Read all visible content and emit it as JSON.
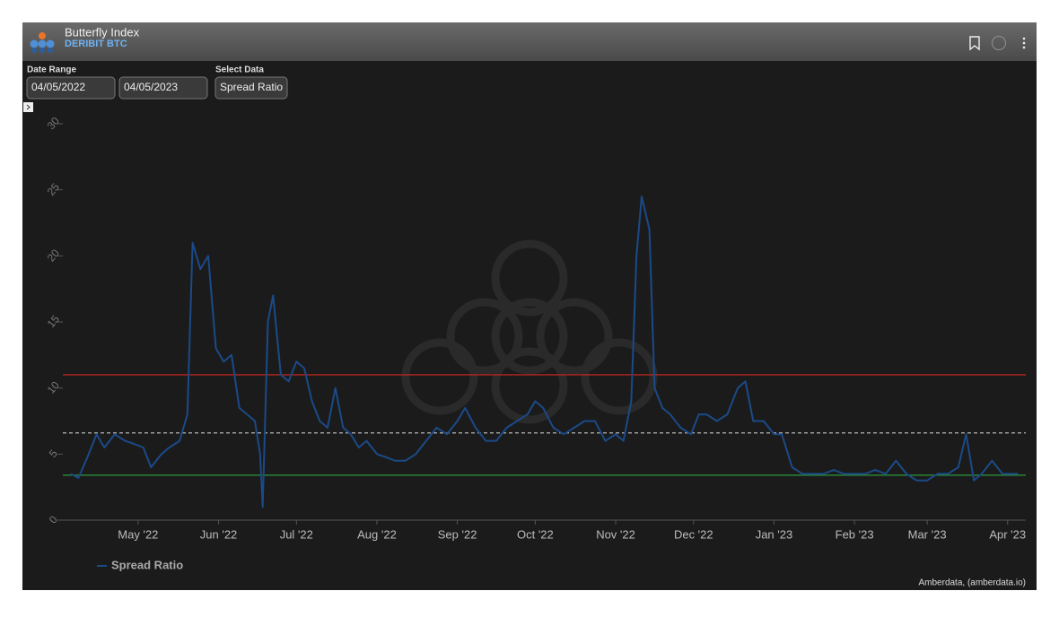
{
  "header": {
    "title": "Butterfly Index",
    "subtitle": "DERIBIT BTC"
  },
  "controls": {
    "date_range": {
      "label": "Date Range",
      "start": "04/05/2022",
      "end": "04/05/2023"
    },
    "select_data": {
      "label": "Select Data",
      "value": "Spread Ratio"
    }
  },
  "credit": "Amberdata, (amberdata.io)",
  "chart_data": {
    "type": "line",
    "x": [
      "2022-04-05",
      "2022-04-08",
      "2022-04-12",
      "2022-04-15",
      "2022-04-18",
      "2022-04-22",
      "2022-04-26",
      "2022-04-29",
      "2022-05-03",
      "2022-05-06",
      "2022-05-10",
      "2022-05-13",
      "2022-05-17",
      "2022-05-20",
      "2022-05-22",
      "2022-05-25",
      "2022-05-28",
      "2022-05-31",
      "2022-06-03",
      "2022-06-06",
      "2022-06-09",
      "2022-06-12",
      "2022-06-15",
      "2022-06-17",
      "2022-06-18",
      "2022-06-20",
      "2022-06-22",
      "2022-06-25",
      "2022-06-28",
      "2022-07-01",
      "2022-07-04",
      "2022-07-07",
      "2022-07-10",
      "2022-07-13",
      "2022-07-16",
      "2022-07-19",
      "2022-07-22",
      "2022-07-25",
      "2022-07-28",
      "2022-08-01",
      "2022-08-04",
      "2022-08-08",
      "2022-08-12",
      "2022-08-16",
      "2022-08-20",
      "2022-08-24",
      "2022-08-28",
      "2022-09-01",
      "2022-09-04",
      "2022-09-08",
      "2022-09-12",
      "2022-09-16",
      "2022-09-20",
      "2022-09-24",
      "2022-09-28",
      "2022-10-01",
      "2022-10-04",
      "2022-10-08",
      "2022-10-12",
      "2022-10-16",
      "2022-10-20",
      "2022-10-24",
      "2022-10-28",
      "2022-11-01",
      "2022-11-04",
      "2022-11-07",
      "2022-11-09",
      "2022-11-11",
      "2022-11-14",
      "2022-11-16",
      "2022-11-19",
      "2022-11-22",
      "2022-11-26",
      "2022-11-30",
      "2022-12-03",
      "2022-12-06",
      "2022-12-10",
      "2022-12-14",
      "2022-12-18",
      "2022-12-21",
      "2022-12-24",
      "2022-12-28",
      "2023-01-01",
      "2023-01-04",
      "2023-01-08",
      "2023-01-12",
      "2023-01-16",
      "2023-01-20",
      "2023-01-24",
      "2023-01-28",
      "2023-02-01",
      "2023-02-05",
      "2023-02-09",
      "2023-02-13",
      "2023-02-17",
      "2023-02-21",
      "2023-02-25",
      "2023-03-01",
      "2023-03-05",
      "2023-03-09",
      "2023-03-13",
      "2023-03-16",
      "2023-03-19",
      "2023-03-22",
      "2023-03-26",
      "2023-03-30",
      "2023-04-03",
      "2023-04-05"
    ],
    "series": [
      {
        "name": "Spread Ratio",
        "color": "#1b4a88",
        "values": [
          3.5,
          3.2,
          5,
          6.5,
          5.5,
          6.5,
          6,
          5.8,
          5.5,
          4,
          5,
          5.5,
          6,
          8,
          21,
          19,
          20,
          13,
          12,
          12.5,
          8.5,
          8,
          7.5,
          5,
          1,
          15,
          17,
          11,
          10.5,
          12,
          11.5,
          9,
          7.5,
          7,
          10,
          7,
          6.5,
          5.5,
          6,
          5,
          4.8,
          4.5,
          4.5,
          5,
          6,
          7,
          6.5,
          7.5,
          8.5,
          7,
          6,
          6,
          7,
          7.5,
          8,
          9,
          8.5,
          7,
          6.5,
          7,
          7.5,
          7.5,
          6,
          6.5,
          6,
          9,
          20,
          24.5,
          22,
          10,
          8.5,
          8,
          7,
          6.5,
          8,
          8,
          7.5,
          8,
          10,
          10.5,
          7.5,
          7.5,
          6.5,
          6.5,
          4,
          3.5,
          3.5,
          3.5,
          3.8,
          3.5,
          3.5,
          3.5,
          3.8,
          3.5,
          4.5,
          3.5,
          3,
          3,
          3.5,
          3.5,
          4,
          6.5,
          3,
          3.5,
          4.5,
          3.5,
          3.5,
          3.5
        ]
      }
    ],
    "reference_lines": [
      {
        "value": 11,
        "color": "#d8261f",
        "style": "solid"
      },
      {
        "value": 6.6,
        "color": "#bbbbbb",
        "style": "dashed"
      },
      {
        "value": 3.4,
        "color": "#2e9a3a",
        "style": "solid"
      }
    ],
    "xlim": [
      "2022-04-02",
      "2023-04-08"
    ],
    "xticks": [
      {
        "value": "2022-05-01",
        "label": "May '22"
      },
      {
        "value": "2022-06-01",
        "label": "Jun '22"
      },
      {
        "value": "2022-07-01",
        "label": "Jul '22"
      },
      {
        "value": "2022-08-01",
        "label": "Aug '22"
      },
      {
        "value": "2022-09-01",
        "label": "Sep '22"
      },
      {
        "value": "2022-10-01",
        "label": "Oct '22"
      },
      {
        "value": "2022-11-01",
        "label": "Nov '22"
      },
      {
        "value": "2022-12-01",
        "label": "Dec '22"
      },
      {
        "value": "2023-01-01",
        "label": "Jan '23"
      },
      {
        "value": "2023-02-01",
        "label": "Feb '23"
      },
      {
        "value": "2023-03-01",
        "label": "Mar '23"
      },
      {
        "value": "2023-04-01",
        "label": "Apr '23"
      }
    ],
    "ylim": [
      0,
      30
    ],
    "yticks": [
      0,
      5,
      10,
      15,
      20,
      25,
      30
    ],
    "grid": false,
    "legend": "bottom-left"
  }
}
